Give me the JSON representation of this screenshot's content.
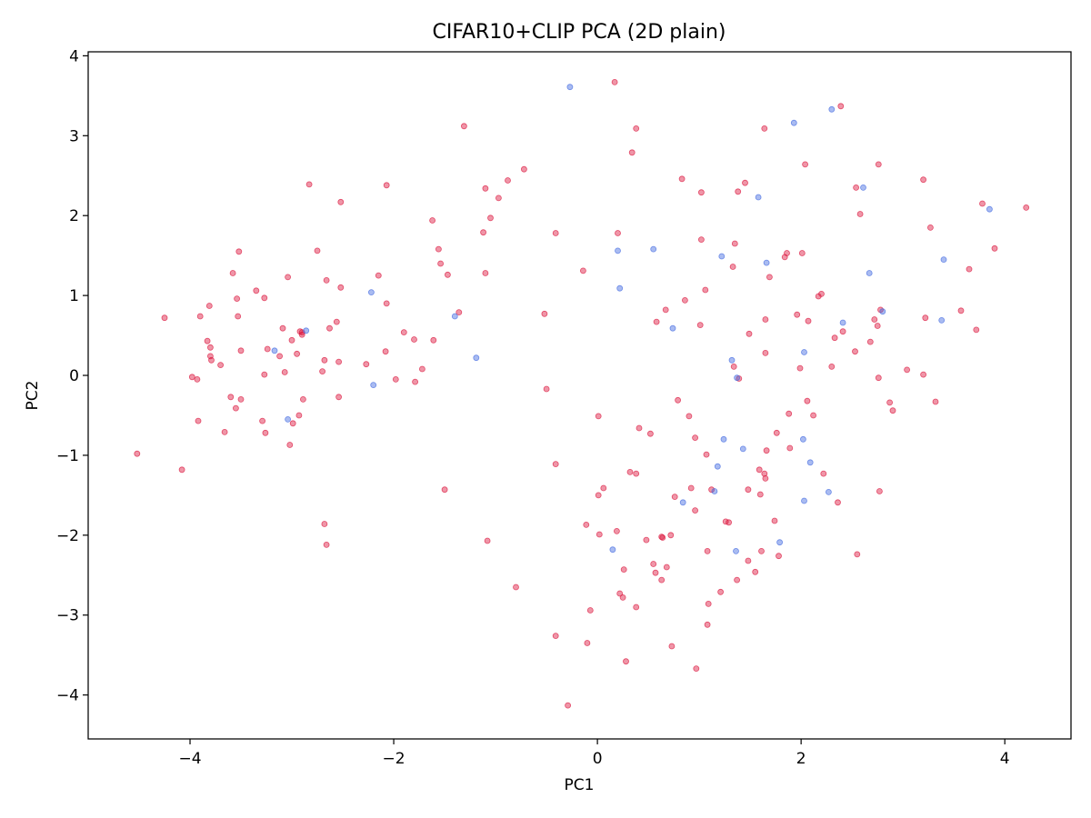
{
  "chart_data": {
    "type": "scatter",
    "title": "CIFAR10+CLIP PCA (2D plain)",
    "xlabel": "PC1",
    "ylabel": "PC2",
    "xlim": [
      -5.0,
      4.65
    ],
    "ylim": [
      -4.55,
      4.05
    ],
    "xticks": [
      -4,
      -2,
      0,
      2,
      4
    ],
    "yticks": [
      -4,
      -3,
      -2,
      -1,
      0,
      1,
      2,
      3,
      4
    ],
    "xtick_labels": [
      "−4",
      "−2",
      "0",
      "2",
      "4"
    ],
    "ytick_labels": [
      "−4",
      "−3",
      "−2",
      "−1",
      "0",
      "1",
      "2",
      "3",
      "4"
    ],
    "grid": false,
    "series": [
      {
        "color": "#dc143c",
        "points": [
          [
            -4.52,
            -0.98
          ],
          [
            -4.25,
            0.72
          ],
          [
            -4.08,
            -1.18
          ],
          [
            -3.98,
            -0.02
          ],
          [
            -3.93,
            -0.05
          ],
          [
            -3.92,
            -0.57
          ],
          [
            -3.9,
            0.74
          ],
          [
            -3.83,
            0.43
          ],
          [
            -3.81,
            0.87
          ],
          [
            -3.8,
            0.35
          ],
          [
            -3.8,
            0.24
          ],
          [
            -3.79,
            0.19
          ],
          [
            -3.7,
            0.13
          ],
          [
            -3.66,
            -0.71
          ],
          [
            -3.6,
            -0.27
          ],
          [
            -3.58,
            1.28
          ],
          [
            -3.55,
            -0.41
          ],
          [
            -3.54,
            0.96
          ],
          [
            -3.53,
            0.74
          ],
          [
            -3.52,
            1.55
          ],
          [
            -3.5,
            -0.3
          ],
          [
            -3.5,
            0.31
          ],
          [
            -3.35,
            1.06
          ],
          [
            -3.29,
            -0.57
          ],
          [
            -3.27,
            0.01
          ],
          [
            -3.27,
            0.97
          ],
          [
            -3.26,
            -0.72
          ],
          [
            -3.24,
            0.33
          ],
          [
            -3.12,
            0.24
          ],
          [
            -3.09,
            0.59
          ],
          [
            -3.07,
            0.04
          ],
          [
            -3.04,
            1.23
          ],
          [
            -3.02,
            -0.87
          ],
          [
            -3.0,
            0.44
          ],
          [
            -2.99,
            -0.6
          ],
          [
            -2.95,
            0.27
          ],
          [
            -2.93,
            -0.5
          ],
          [
            -2.92,
            0.55
          ],
          [
            -2.9,
            0.51
          ],
          [
            -2.9,
            0.54
          ],
          [
            -2.89,
            -0.3
          ],
          [
            -2.83,
            2.39
          ],
          [
            -2.75,
            1.56
          ],
          [
            -2.7,
            0.05
          ],
          [
            -2.68,
            0.19
          ],
          [
            -2.68,
            -1.86
          ],
          [
            -2.66,
            1.19
          ],
          [
            -2.66,
            -2.12
          ],
          [
            -2.63,
            0.59
          ],
          [
            -2.56,
            0.67
          ],
          [
            -2.54,
            0.17
          ],
          [
            -2.54,
            -0.27
          ],
          [
            -2.52,
            1.1
          ],
          [
            -2.52,
            2.17
          ],
          [
            -2.27,
            0.14
          ],
          [
            -2.15,
            1.25
          ],
          [
            -2.08,
            0.3
          ],
          [
            -2.07,
            0.9
          ],
          [
            -2.07,
            2.38
          ],
          [
            -1.98,
            -0.05
          ],
          [
            -1.9,
            0.54
          ],
          [
            -1.8,
            0.45
          ],
          [
            -1.79,
            -0.08
          ],
          [
            -1.72,
            0.08
          ],
          [
            -1.62,
            1.94
          ],
          [
            -1.61,
            0.44
          ],
          [
            -1.56,
            1.58
          ],
          [
            -1.54,
            1.4
          ],
          [
            -1.5,
            -1.43
          ],
          [
            -1.47,
            1.26
          ],
          [
            -1.36,
            0.79
          ],
          [
            -1.31,
            3.12
          ],
          [
            -1.12,
            1.79
          ],
          [
            -1.1,
            2.34
          ],
          [
            -1.1,
            1.28
          ],
          [
            -1.08,
            -2.07
          ],
          [
            -1.05,
            1.97
          ],
          [
            -0.97,
            2.22
          ],
          [
            -0.88,
            2.44
          ],
          [
            -0.8,
            -2.65
          ],
          [
            -0.72,
            2.58
          ],
          [
            -0.52,
            0.77
          ],
          [
            -0.5,
            -0.17
          ],
          [
            -0.41,
            1.78
          ],
          [
            -0.41,
            -1.11
          ],
          [
            -0.41,
            -3.26
          ],
          [
            -0.29,
            -4.13
          ],
          [
            -0.14,
            1.31
          ],
          [
            -0.11,
            -1.87
          ],
          [
            -0.1,
            -3.35
          ],
          [
            -0.07,
            -2.94
          ],
          [
            0.01,
            -0.51
          ],
          [
            0.02,
            -1.99
          ],
          [
            0.01,
            -1.5
          ],
          [
            0.06,
            -1.41
          ],
          [
            0.17,
            3.67
          ],
          [
            0.19,
            -1.95
          ],
          [
            0.2,
            1.78
          ],
          [
            0.22,
            -2.73
          ],
          [
            0.25,
            -2.78
          ],
          [
            0.26,
            -2.43
          ],
          [
            0.28,
            -3.58
          ],
          [
            0.32,
            -1.21
          ],
          [
            0.34,
            2.79
          ],
          [
            0.38,
            3.09
          ],
          [
            0.38,
            -2.9
          ],
          [
            0.38,
            -1.23
          ],
          [
            0.41,
            -0.66
          ],
          [
            0.48,
            -2.06
          ],
          [
            0.52,
            -0.73
          ],
          [
            0.55,
            -2.36
          ],
          [
            0.57,
            -2.47
          ],
          [
            0.58,
            0.67
          ],
          [
            0.63,
            -2.02
          ],
          [
            0.63,
            -2.56
          ],
          [
            0.64,
            -2.03
          ],
          [
            0.67,
            0.82
          ],
          [
            0.68,
            -2.4
          ],
          [
            0.73,
            -3.39
          ],
          [
            0.72,
            -2.0
          ],
          [
            0.76,
            -1.52
          ],
          [
            0.79,
            -0.31
          ],
          [
            0.83,
            2.46
          ],
          [
            0.86,
            0.94
          ],
          [
            0.9,
            -0.51
          ],
          [
            0.92,
            -1.41
          ],
          [
            0.96,
            -0.78
          ],
          [
            0.96,
            -1.69
          ],
          [
            0.97,
            -3.67
          ],
          [
            1.01,
            0.63
          ],
          [
            1.02,
            1.7
          ],
          [
            1.02,
            2.29
          ],
          [
            1.06,
            1.07
          ],
          [
            1.07,
            -0.99
          ],
          [
            1.08,
            -2.2
          ],
          [
            1.08,
            -3.12
          ],
          [
            1.09,
            -2.86
          ],
          [
            1.12,
            -1.43
          ],
          [
            1.21,
            -2.71
          ],
          [
            1.26,
            -1.83
          ],
          [
            1.29,
            -1.84
          ],
          [
            1.33,
            1.36
          ],
          [
            1.34,
            0.11
          ],
          [
            1.35,
            1.65
          ],
          [
            1.37,
            -2.56
          ],
          [
            1.38,
            2.3
          ],
          [
            1.39,
            -0.04
          ],
          [
            1.45,
            2.41
          ],
          [
            1.48,
            -1.43
          ],
          [
            1.49,
            0.52
          ],
          [
            1.48,
            -2.32
          ],
          [
            1.55,
            -2.46
          ],
          [
            1.59,
            -1.18
          ],
          [
            1.6,
            -1.49
          ],
          [
            1.61,
            -2.2
          ],
          [
            1.64,
            -1.23
          ],
          [
            1.65,
            -1.29
          ],
          [
            1.64,
            3.09
          ],
          [
            1.65,
            0.7
          ],
          [
            1.65,
            0.28
          ],
          [
            1.66,
            -0.94
          ],
          [
            1.69,
            1.23
          ],
          [
            1.74,
            -1.82
          ],
          [
            1.76,
            -0.72
          ],
          [
            1.78,
            -2.26
          ],
          [
            1.84,
            1.48
          ],
          [
            1.86,
            1.53
          ],
          [
            1.88,
            -0.48
          ],
          [
            1.89,
            -0.91
          ],
          [
            1.96,
            0.76
          ],
          [
            1.99,
            0.09
          ],
          [
            2.01,
            1.53
          ],
          [
            2.04,
            2.64
          ],
          [
            2.06,
            -0.32
          ],
          [
            2.07,
            0.68
          ],
          [
            2.12,
            -0.5
          ],
          [
            2.17,
            0.99
          ],
          [
            2.2,
            1.02
          ],
          [
            2.22,
            -1.23
          ],
          [
            2.3,
            0.11
          ],
          [
            2.33,
            0.47
          ],
          [
            2.36,
            -1.59
          ],
          [
            2.39,
            3.37
          ],
          [
            2.41,
            0.55
          ],
          [
            2.53,
            0.3
          ],
          [
            2.54,
            2.35
          ],
          [
            2.55,
            -2.24
          ],
          [
            2.58,
            2.02
          ],
          [
            2.68,
            0.42
          ],
          [
            2.72,
            0.7
          ],
          [
            2.75,
            0.62
          ],
          [
            2.76,
            -0.03
          ],
          [
            2.76,
            2.64
          ],
          [
            2.77,
            -1.45
          ],
          [
            2.78,
            0.82
          ],
          [
            2.87,
            -0.34
          ],
          [
            2.9,
            -0.44
          ],
          [
            3.04,
            0.07
          ],
          [
            3.2,
            2.45
          ],
          [
            3.22,
            0.72
          ],
          [
            3.2,
            0.01
          ],
          [
            3.27,
            1.85
          ],
          [
            3.32,
            -0.33
          ],
          [
            3.57,
            0.81
          ],
          [
            3.65,
            1.33
          ],
          [
            3.72,
            0.57
          ],
          [
            3.78,
            2.15
          ],
          [
            3.9,
            1.59
          ],
          [
            4.21,
            2.1
          ]
        ]
      },
      {
        "color": "#4169e1",
        "points": [
          [
            -3.17,
            0.31
          ],
          [
            -3.04,
            -0.55
          ],
          [
            -2.86,
            0.56
          ],
          [
            -2.22,
            1.04
          ],
          [
            -2.2,
            -0.12
          ],
          [
            -1.4,
            0.74
          ],
          [
            -1.19,
            0.22
          ],
          [
            -0.27,
            3.61
          ],
          [
            0.15,
            -2.18
          ],
          [
            0.2,
            1.56
          ],
          [
            0.22,
            1.09
          ],
          [
            0.55,
            1.58
          ],
          [
            0.74,
            0.59
          ],
          [
            0.84,
            -1.59
          ],
          [
            1.15,
            -1.45
          ],
          [
            1.18,
            -1.14
          ],
          [
            1.22,
            1.49
          ],
          [
            1.24,
            -0.8
          ],
          [
            1.32,
            0.19
          ],
          [
            1.36,
            -2.2
          ],
          [
            1.37,
            -0.03
          ],
          [
            1.43,
            -0.92
          ],
          [
            1.58,
            2.23
          ],
          [
            1.66,
            1.41
          ],
          [
            1.79,
            -2.09
          ],
          [
            1.93,
            3.16
          ],
          [
            2.02,
            -0.8
          ],
          [
            2.03,
            -1.57
          ],
          [
            2.03,
            0.29
          ],
          [
            2.09,
            -1.09
          ],
          [
            2.27,
            -1.46
          ],
          [
            2.3,
            3.33
          ],
          [
            2.41,
            0.66
          ],
          [
            2.61,
            2.35
          ],
          [
            2.67,
            1.28
          ],
          [
            2.8,
            0.8
          ],
          [
            3.38,
            0.69
          ],
          [
            3.4,
            1.45
          ],
          [
            3.85,
            2.08
          ]
        ]
      }
    ]
  }
}
